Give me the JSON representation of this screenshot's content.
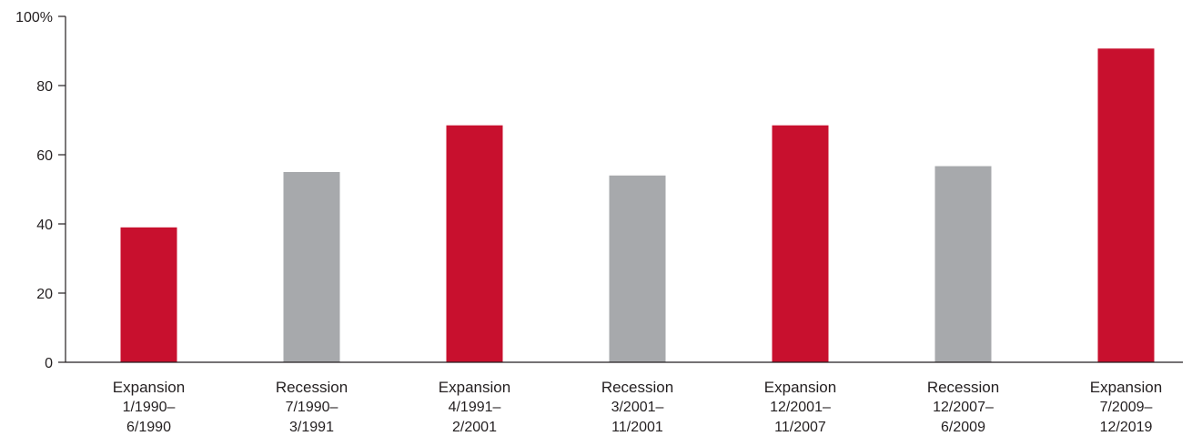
{
  "chart_data": {
    "type": "bar",
    "title": "",
    "xlabel": "",
    "ylabel": "",
    "ylim": [
      0,
      100
    ],
    "y_ticks": [
      0,
      20,
      40,
      60,
      80,
      100
    ],
    "y_tick_labels": [
      "0",
      "20",
      "40",
      "60",
      "80",
      "100%"
    ],
    "grid": false,
    "categories": [
      {
        "type": "Expansion",
        "start": "1/1990–",
        "end": "6/1990"
      },
      {
        "type": "Recession",
        "start": "7/1990–",
        "end": "3/1991"
      },
      {
        "type": "Expansion",
        "start": "4/1991–",
        "end": "2/2001"
      },
      {
        "type": "Recession",
        "start": "3/2001–",
        "end": "11/2001"
      },
      {
        "type": "Expansion",
        "start": "12/2001–",
        "end": "11/2007"
      },
      {
        "type": "Recession",
        "start": "12/2007–",
        "end": "6/2009"
      },
      {
        "type": "Expansion",
        "start": "7/2009–",
        "end": "12/2019"
      }
    ],
    "values": [
      39,
      55,
      68.5,
      54,
      68.5,
      56.7,
      90.7
    ],
    "colors": {
      "Expansion": "#c8102e",
      "Recession": "#a7a9ac",
      "axis": "#231f20"
    }
  }
}
